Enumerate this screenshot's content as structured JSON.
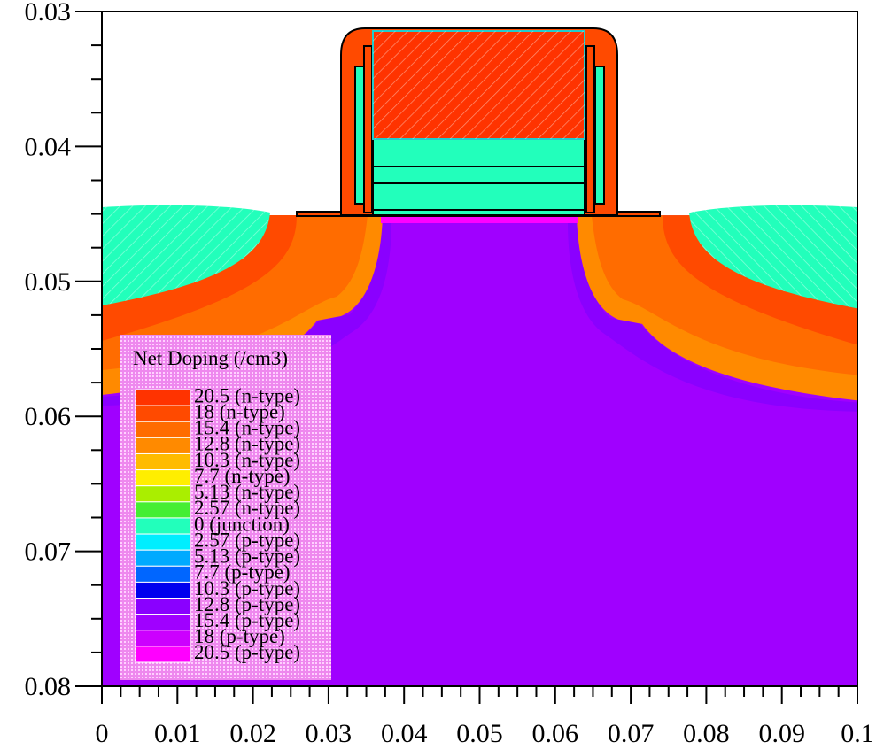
{
  "chart_data": {
    "type": "contour",
    "xlim": [
      0,
      0.1
    ],
    "xticks": [
      0,
      0.01,
      0.02,
      0.03,
      0.04,
      0.05,
      0.06,
      0.07,
      0.08,
      0.09,
      0.1
    ],
    "ylim": [
      0.03,
      0.08
    ],
    "yticks": [
      0.03,
      0.04,
      0.05,
      0.06,
      0.07,
      0.08
    ],
    "y_reversed": true,
    "legend": {
      "title": "Net Doping (/cm3)",
      "levels": [
        {
          "value": 20.5,
          "label": "20.5 (n-type)"
        },
        {
          "value": 18,
          "label": "18 (n-type)"
        },
        {
          "value": 15.4,
          "label": "15.4 (n-type)"
        },
        {
          "value": 12.8,
          "label": "12.8 (n-type)"
        },
        {
          "value": 10.3,
          "label": "10.3 (n-type)"
        },
        {
          "value": 7.7,
          "label": "7.7 (n-type)"
        },
        {
          "value": 5.13,
          "label": "5.13 (n-type)"
        },
        {
          "value": 2.57,
          "label": "2.57 (n-type)"
        },
        {
          "value": 0,
          "label": "0 (junction)"
        },
        {
          "value": -2.57,
          "label": "2.57 (p-type)"
        },
        {
          "value": -5.13,
          "label": "5.13 (p-type)"
        },
        {
          "value": -7.7,
          "label": "7.7 (p-type)"
        },
        {
          "value": -10.3,
          "label": "10.3 (p-type)"
        },
        {
          "value": -12.8,
          "label": "12.8 (p-type)"
        },
        {
          "value": -15.4,
          "label": "15.4 (p-type)"
        },
        {
          "value": -18,
          "label": "18 (p-type)"
        },
        {
          "value": -20.5,
          "label": "20.5 (p-type)"
        }
      ]
    },
    "level_colors": [
      "#ff3300",
      "#ff4a00",
      "#ff6c00",
      "#ff8a00",
      "#ffbb00",
      "#ffee00",
      "#aaee00",
      "#44ee33",
      "#22ffbb",
      "#00eeff",
      "#00aaff",
      "#0066ff",
      "#0000ee",
      "#8a00ff",
      "#a000ff",
      "#cc00ff",
      "#ff00ff"
    ]
  }
}
